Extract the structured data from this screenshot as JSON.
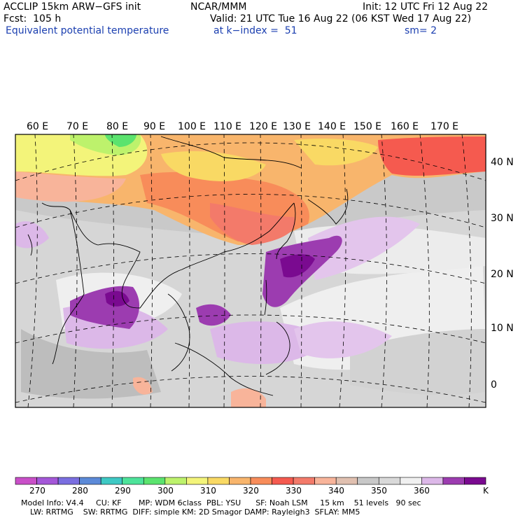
{
  "header": {
    "model": "ACCLIP 15km ARW−GFS init",
    "org": "NCAR/MMM",
    "init": "Init: 12 UTC Fri 12 Aug 22",
    "fcst": "Fcst:  105 h",
    "valid": "Valid: 21 UTC Tue 16 Aug 22 (06 KST Wed 17 Aug 22)",
    "field": "Equivalent potential temperature",
    "level": "at k−index =  51",
    "smooth": "sm= 2"
  },
  "lon_labels": [
    "60 E",
    "70 E",
    "80 E",
    "90 E",
    "100 E",
    "110 E",
    "120 E",
    "130 E",
    "140 E",
    "150 E",
    "160 E",
    "170 E"
  ],
  "lat_labels": [
    "40 N",
    "30 N",
    "20 N",
    "10 N",
    "0"
  ],
  "colorbar": {
    "unit": "K",
    "ticks": [
      "270",
      "280",
      "290",
      "300",
      "310",
      "320",
      "330",
      "340",
      "350",
      "360"
    ],
    "colors": [
      "#c94fc8",
      "#a457d8",
      "#7a6ee0",
      "#5c8ad8",
      "#3ec9c4",
      "#4de39a",
      "#5be36e",
      "#bdf26c",
      "#f3f47a",
      "#f9d964",
      "#f8b56c",
      "#f88c5a",
      "#f55a4f",
      "#f37a6a",
      "#f8b49a",
      "#e0c0b0",
      "#c8c8c8",
      "#d9d9d9",
      "#f0f0f0",
      "#dcb8e8",
      "#9c3cb0",
      "#7a0a90"
    ]
  },
  "footer": {
    "line1": "Model Info: V4.4     CU: KF       MP: WDM 6class  PBL: YSU      SF: Noah LSM     15 km    51 levels   90 sec",
    "line2": "LW: RRTMG    SW: RRTMG  DIFF: simple KM: 2D Smagor DAMP: Rayleigh3  SFLAY: MM5"
  }
}
